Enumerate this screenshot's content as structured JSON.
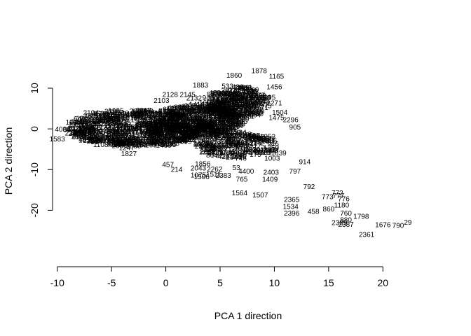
{
  "chart_data": {
    "type": "scatter",
    "title": "",
    "xlabel": "PCA 1 direction",
    "ylabel": "PCA 2 direction",
    "xlim": [
      -10.5,
      22.5
    ],
    "ylim": [
      -27.5,
      15.5
    ],
    "xticks": [
      -10,
      -5,
      0,
      5,
      10,
      15,
      20
    ],
    "yticks": [
      -20,
      -10,
      0,
      10
    ],
    "grid": false,
    "legend": "none",
    "marker": "text-label",
    "points": [
      {
        "label": "1878",
        "x": 8.6,
        "y": 14.1
      },
      {
        "label": "1860",
        "x": 6.3,
        "y": 13.0
      },
      {
        "label": "1165",
        "x": 10.2,
        "y": 12.8
      },
      {
        "label": "1456",
        "x": 10.0,
        "y": 10.2
      },
      {
        "label": "2128",
        "x": 0.4,
        "y": 8.3
      },
      {
        "label": "2145",
        "x": 2.0,
        "y": 8.3
      },
      {
        "label": "2103",
        "x": -0.4,
        "y": 6.8
      },
      {
        "label": "2295",
        "x": 9.4,
        "y": 7.6
      },
      {
        "label": "2271",
        "x": 10.0,
        "y": 6.2
      },
      {
        "label": "2194",
        "x": -6.9,
        "y": 3.8
      },
      {
        "label": "1504",
        "x": 10.5,
        "y": 3.9
      },
      {
        "label": "1475",
        "x": 10.2,
        "y": 2.6
      },
      {
        "label": "2296",
        "x": 11.5,
        "y": 2.1
      },
      {
        "label": "905",
        "x": 11.9,
        "y": 0.3
      },
      {
        "label": "1039",
        "x": 10.4,
        "y": -6.1
      },
      {
        "label": "1003",
        "x": 9.8,
        "y": -7.4
      },
      {
        "label": "914",
        "x": 12.8,
        "y": -8.2
      },
      {
        "label": "797",
        "x": 11.9,
        "y": -10.5
      },
      {
        "label": "2403",
        "x": 9.7,
        "y": -10.8
      },
      {
        "label": "1409",
        "x": 9.6,
        "y": -12.5
      },
      {
        "label": "765",
        "x": 7.0,
        "y": -12.5
      },
      {
        "label": "792",
        "x": 13.2,
        "y": -14.3
      },
      {
        "label": "1564",
        "x": 6.8,
        "y": -15.9
      },
      {
        "label": "1507",
        "x": 8.7,
        "y": -16.4
      },
      {
        "label": "2365",
        "x": 11.6,
        "y": -17.5
      },
      {
        "label": "1534",
        "x": 11.5,
        "y": -19.2
      },
      {
        "label": "2396",
        "x": 11.6,
        "y": -20.9
      },
      {
        "label": "458",
        "x": 13.6,
        "y": -20.4
      },
      {
        "label": "860",
        "x": 15.0,
        "y": -19.8
      },
      {
        "label": "772",
        "x": 15.8,
        "y": -15.9
      },
      {
        "label": "773",
        "x": 14.9,
        "y": -16.8
      },
      {
        "label": "777",
        "x": 15.9,
        "y": -16.6
      },
      {
        "label": "776",
        "x": 16.4,
        "y": -17.3
      },
      {
        "label": "1180",
        "x": 16.2,
        "y": -18.9
      },
      {
        "label": "760",
        "x": 16.6,
        "y": -20.9
      },
      {
        "label": "1798",
        "x": 18.0,
        "y": -21.6
      },
      {
        "label": "880",
        "x": 16.6,
        "y": -22.5
      },
      {
        "label": "2389",
        "x": 16.0,
        "y": -23.2
      },
      {
        "label": "2387",
        "x": 16.6,
        "y": -23.6
      },
      {
        "label": "1676",
        "x": 20.0,
        "y": -23.7
      },
      {
        "label": "790",
        "x": 21.4,
        "y": -23.9
      },
      {
        "label": "29",
        "x": 22.3,
        "y": -23.1
      },
      {
        "label": "2361",
        "x": 18.5,
        "y": -26.1
      },
      {
        "label": "1827",
        "x": -3.4,
        "y": -6.2
      },
      {
        "label": "457",
        "x": 0.2,
        "y": -8.9
      },
      {
        "label": "214",
        "x": 1.0,
        "y": -10.1
      },
      {
        "label": "1075",
        "x": 3.0,
        "y": -11.5
      },
      {
        "label": "1506",
        "x": 3.3,
        "y": -11.9
      },
      {
        "label": "1511",
        "x": 4.4,
        "y": -11.3
      },
      {
        "label": "2383",
        "x": 5.3,
        "y": -11.6
      },
      {
        "label": "1856",
        "x": 3.4,
        "y": -8.7
      },
      {
        "label": "2043",
        "x": 3.0,
        "y": -9.8
      },
      {
        "label": "2262",
        "x": 4.5,
        "y": -10.0
      },
      {
        "label": "53",
        "x": 6.5,
        "y": -9.7
      },
      {
        "label": "4400",
        "x": 7.4,
        "y": -10.5
      },
      {
        "label": "1583",
        "x": -10.0,
        "y": -2.6
      },
      {
        "label": "1108",
        "x": -6.0,
        "y": -4.0
      },
      {
        "label": "4084",
        "x": -9.5,
        "y": -0.2
      },
      {
        "label": "1247",
        "x": -3.6,
        "y": -4.8
      },
      {
        "label": "1883",
        "x": 3.2,
        "y": 10.6
      },
      {
        "label": "2132",
        "x": 2.6,
        "y": 7.4
      },
      {
        "label": "1905",
        "x": -4.6,
        "y": 4.3
      }
    ]
  }
}
